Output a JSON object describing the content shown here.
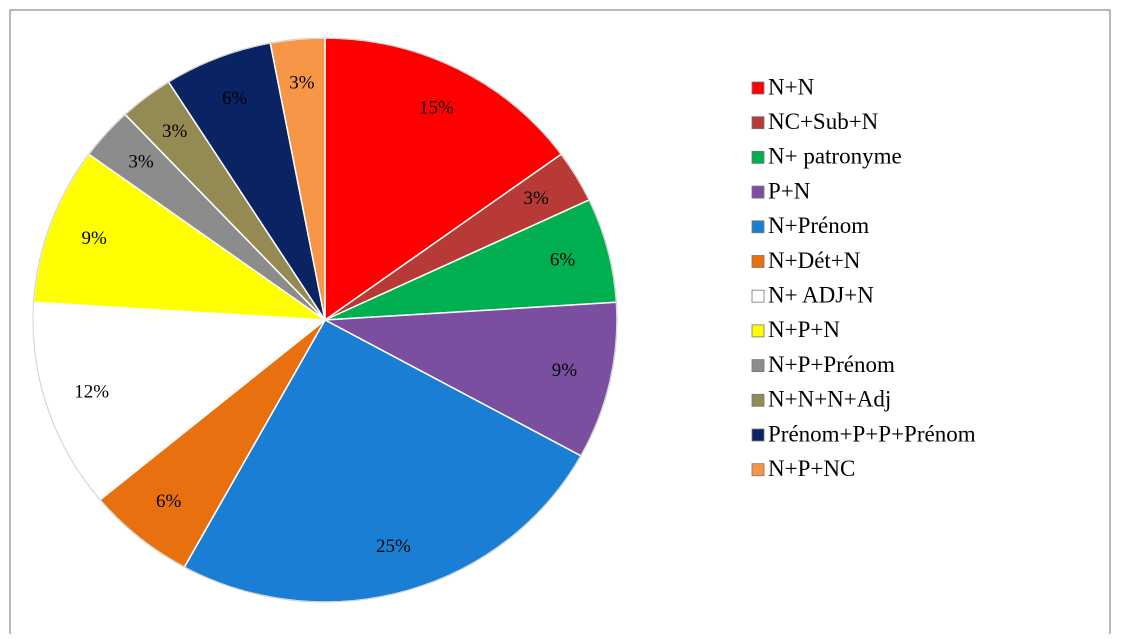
{
  "chart_data": {
    "type": "pie",
    "categories": [
      "N+N",
      "NC+Sub+N",
      "N+ patronyme",
      "P+N",
      "N+Prénom",
      "N+Dét+N",
      "N+ ADJ+N",
      "N+P+N",
      "N+P+Prénom",
      "N+N+N+Adj",
      "Prénom+P+P+Prénom",
      "N+P+NC"
    ],
    "values": [
      15,
      3,
      6,
      9,
      25,
      6,
      12,
      9,
      3,
      3,
      6,
      3
    ],
    "value_labels": [
      "15%",
      "3%",
      "6%",
      "9%",
      "25%",
      "6%",
      "12%",
      "9%",
      "3%",
      "3%",
      "6%",
      "3%"
    ],
    "colors": [
      "#ff0000",
      "#b83a36",
      "#00b050",
      "#7a4fa0",
      "#1a7fd4",
      "#e8700e",
      "#ffffff",
      "#ffff00",
      "#8c8c8c",
      "#948a54",
      "#0a2463",
      "#f79646"
    ],
    "legend": "right"
  }
}
